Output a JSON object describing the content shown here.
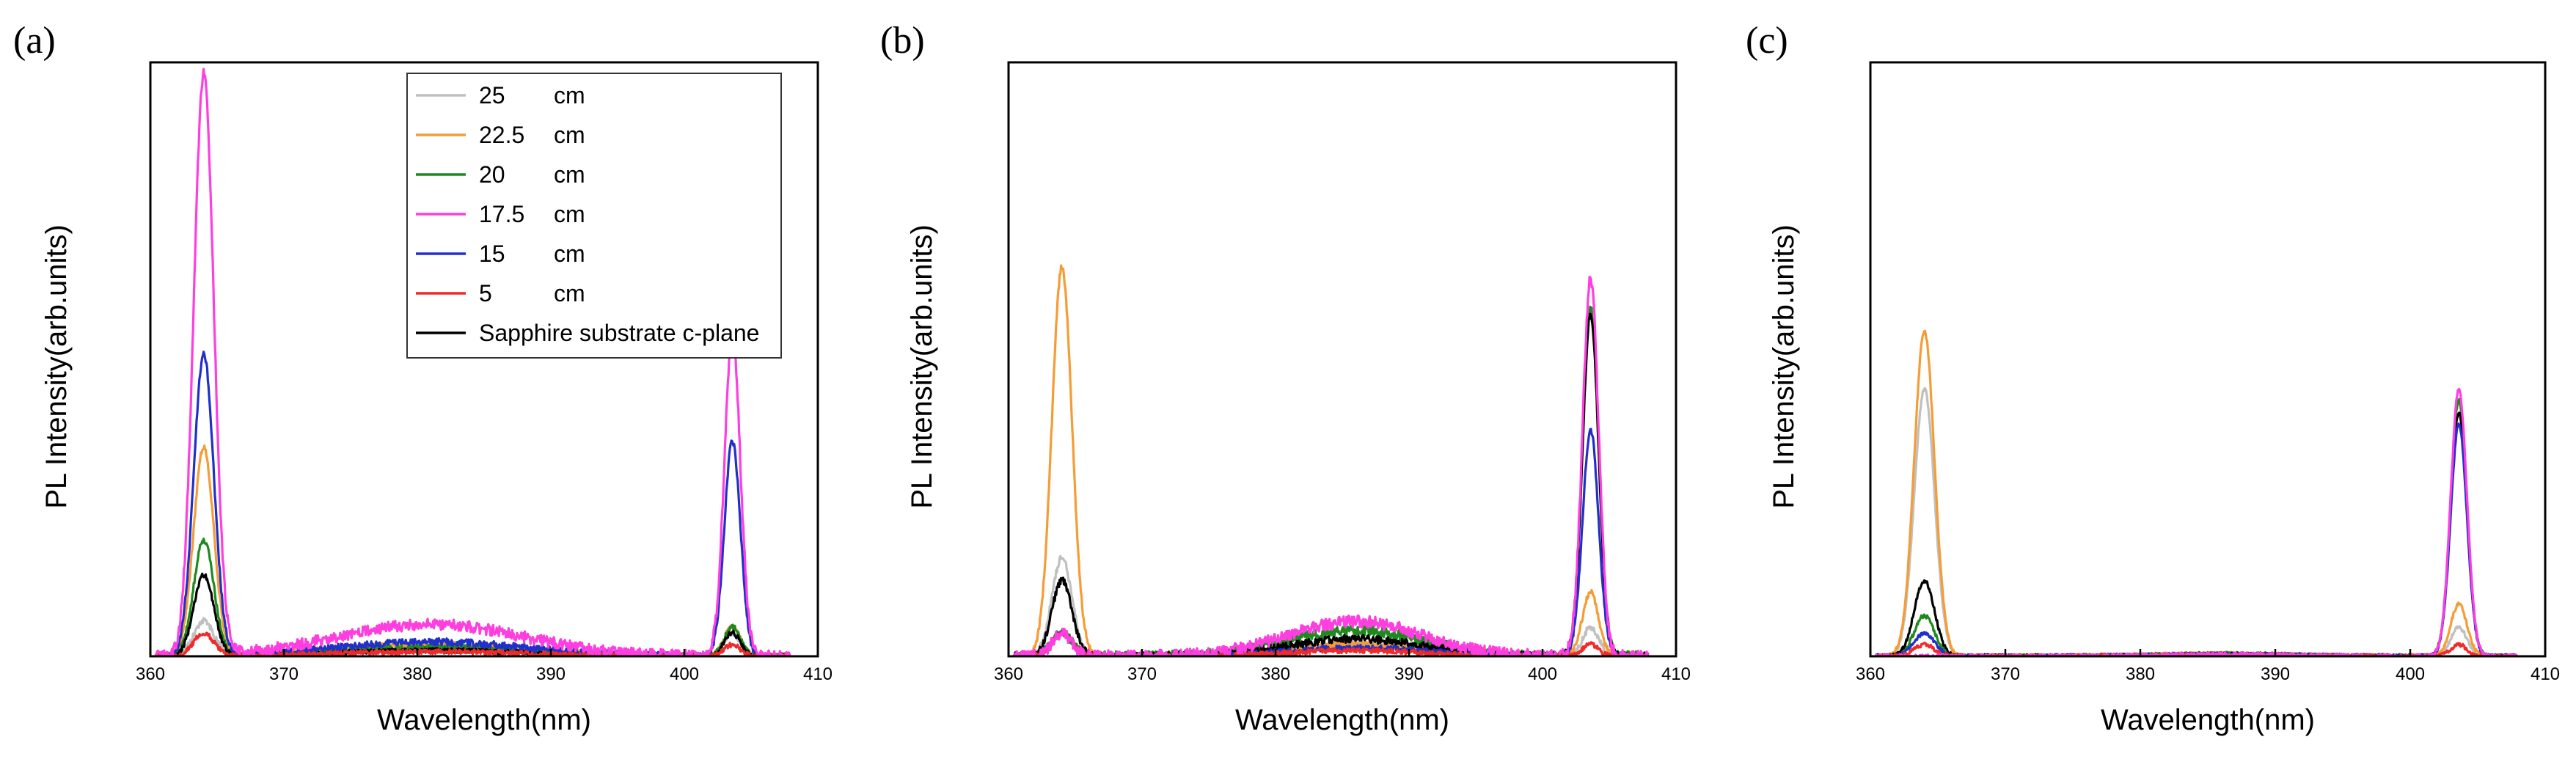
{
  "chart_data": [
    {
      "type": "line",
      "panel_label": "(a)",
      "xlabel": "Wavelength(nm)",
      "ylabel": "PL Intensity(arb.units)",
      "xlim": [
        360,
        410
      ],
      "ylim": [
        0,
        100
      ],
      "xticks": [
        360,
        370,
        380,
        390,
        400,
        410
      ],
      "legend_position": "top-right",
      "series": [
        {
          "name": "25",
          "unit": "cm",
          "color": "#c0c0c0",
          "peak1": 6,
          "peak2": 4,
          "broad": 2
        },
        {
          "name": "22.5",
          "unit": "cm",
          "color": "#f59c35",
          "peak1": 36,
          "peak2": 5,
          "broad": 2
        },
        {
          "name": "20",
          "unit": "cm",
          "color": "#1e8a1e",
          "peak1": 20,
          "peak2": 5,
          "broad": 1.5
        },
        {
          "name": "17.5",
          "unit": "cm",
          "color": "#ff3ee0",
          "peak1": 100,
          "peak2": 55,
          "broad": 5.5
        },
        {
          "name": "15",
          "unit": "cm",
          "color": "#2030c8",
          "peak1": 52,
          "peak2": 37,
          "broad": 2.5
        },
        {
          "name": " 5",
          "unit": "cm",
          "color": "#f02a2a",
          "peak1": 4,
          "peak2": 2,
          "broad": 0.8
        },
        {
          "name": "Sapphire substrate c-plane",
          "unit": "",
          "color": "#000000",
          "peak1": 14,
          "peak2": 4,
          "broad": 1
        }
      ]
    },
    {
      "type": "line",
      "panel_label": "(b)",
      "xlabel": "Wavelength(nm)",
      "ylabel": "PL Intensity(arb.units)",
      "xlim": [
        360,
        410
      ],
      "ylim": [
        0,
        100
      ],
      "xticks": [
        360,
        370,
        380,
        390,
        400,
        410
      ],
      "series": [
        {
          "name": "25",
          "color": "#c0c0c0",
          "peak1": 17,
          "peak2": 5,
          "broad": 2
        },
        {
          "name": "22.5",
          "color": "#f59c35",
          "peak1": 67,
          "peak2": 11,
          "broad": 2
        },
        {
          "name": "20",
          "color": "#1e8a1e",
          "peak1": 4,
          "peak2": 60,
          "broad": 4.5
        },
        {
          "name": "17.5",
          "color": "#ff3ee0",
          "peak1": 4,
          "peak2": 65,
          "broad": 6
        },
        {
          "name": "15",
          "color": "#2030c8",
          "peak1": 4,
          "peak2": 39,
          "broad": 1.5
        },
        {
          "name": " 5",
          "color": "#f02a2a",
          "peak1": 4,
          "peak2": 2,
          "broad": 1
        },
        {
          "name": "Sapphire substrate c-plane",
          "color": "#000000",
          "peak1": 13,
          "peak2": 59,
          "broad": 3
        }
      ]
    },
    {
      "type": "line",
      "panel_label": "(c)",
      "xlabel": "Wavelength(nm)",
      "ylabel": "PL Intensity(arb.units)",
      "xlim": [
        360,
        410
      ],
      "ylim": [
        0,
        100
      ],
      "xticks": [
        360,
        370,
        380,
        390,
        400,
        410
      ],
      "series": [
        {
          "name": "25",
          "color": "#c0c0c0",
          "peak1": 46,
          "peak2": 5,
          "broad": 0.4
        },
        {
          "name": "22.5",
          "color": "#f59c35",
          "peak1": 56,
          "peak2": 9,
          "broad": 0.4
        },
        {
          "name": "20",
          "color": "#1e8a1e",
          "peak1": 7,
          "peak2": 44,
          "broad": 0.4
        },
        {
          "name": "17.5",
          "color": "#ff3ee0",
          "peak1": 0,
          "peak2": 46,
          "broad": 0.3
        },
        {
          "name": "15",
          "color": "#2030c8",
          "peak1": 4,
          "peak2": 40,
          "broad": 0.3
        },
        {
          "name": " 5",
          "color": "#f02a2a",
          "peak1": 2,
          "peak2": 2,
          "broad": 0.2
        },
        {
          "name": "Sapphire substrate c-plane",
          "color": "#000000",
          "peak1": 13,
          "peak2": 42,
          "broad": 0.3
        }
      ]
    }
  ]
}
